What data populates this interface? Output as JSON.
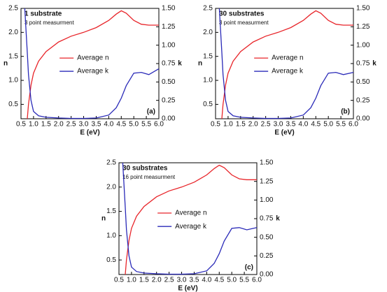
{
  "chart_data": [
    {
      "type": "line",
      "title": "1 substrate",
      "subtitle": "3 point measurment",
      "panel_label": "(a)",
      "xlabel": "E (eV)",
      "ylabel": "n",
      "y2label": "k",
      "x": [
        0.65,
        0.75,
        0.8,
        0.9,
        1.0,
        1.2,
        1.5,
        2.0,
        2.5,
        3.0,
        3.5,
        4.0,
        4.3,
        4.5,
        4.7,
        5.0,
        5.3,
        5.6,
        6.0
      ],
      "series": [
        {
          "name": "Average n",
          "color": "#e8252a",
          "values": [
            null,
            0.2,
            0.5,
            0.9,
            1.15,
            1.4,
            1.6,
            1.8,
            1.92,
            2.0,
            2.1,
            2.25,
            2.38,
            2.45,
            2.4,
            2.25,
            2.17,
            2.15,
            2.15
          ]
        },
        {
          "name": "Average k",
          "color": "#2a2ab8",
          "axis": "y2",
          "values": [
            1.5,
            0.9,
            0.6,
            0.25,
            0.1,
            0.04,
            0.02,
            0.01,
            0.005,
            0.005,
            0.01,
            0.05,
            0.15,
            0.28,
            0.45,
            0.62,
            0.63,
            0.6,
            0.68
          ]
        }
      ],
      "xlim": [
        0.5,
        6.0
      ],
      "xticks": [
        0.5,
        {
          "value": 1.0,
          "label": "1.0"
        },
        1.5,
        {
          "value": 2.0,
          "label": "2.0"
        },
        2.5,
        {
          "value": 3.0,
          "label": "3.0"
        },
        3.5,
        {
          "value": 4.0,
          "label": "4.0"
        },
        4.5,
        {
          "value": 5.0,
          "label": "5.0"
        },
        5.5,
        {
          "value": 6.0,
          "label": "6.0"
        }
      ],
      "ylim": [
        0.2,
        2.5
      ],
      "yticks": [
        0.5,
        {
          "value": 1.0,
          "label": "1.0"
        },
        1.5,
        {
          "value": 2.0,
          "label": "2.0"
        },
        2.5
      ],
      "y2lim": [
        0.0,
        1.5
      ],
      "y2ticks": [
        {
          "value": 0.0,
          "label": "0.00"
        },
        {
          "value": 0.25,
          "label": "0.25"
        },
        {
          "value": 0.5,
          "label": "0.50"
        },
        {
          "value": 0.75,
          "label": "0.75"
        },
        {
          "value": 1.0,
          "label": "1.00"
        },
        {
          "value": 1.25,
          "label": "1.25"
        },
        {
          "value": 1.5,
          "label": "1.50"
        }
      ]
    },
    {
      "type": "line",
      "title": "30 substrates",
      "subtitle": "3 point measurment",
      "panel_label": "(b)",
      "xlabel": "E (eV)",
      "ylabel": "n",
      "y2label": "k",
      "x": [
        0.65,
        0.75,
        0.8,
        0.9,
        1.0,
        1.2,
        1.5,
        2.0,
        2.5,
        3.0,
        3.5,
        4.0,
        4.3,
        4.5,
        4.7,
        5.0,
        5.3,
        5.6,
        6.0
      ],
      "series": [
        {
          "name": "Average n",
          "color": "#e8252a",
          "values": [
            null,
            0.2,
            0.5,
            0.9,
            1.15,
            1.4,
            1.6,
            1.8,
            1.92,
            2.0,
            2.1,
            2.25,
            2.38,
            2.45,
            2.4,
            2.25,
            2.17,
            2.15,
            2.15
          ]
        },
        {
          "name": "Average k",
          "color": "#2a2ab8",
          "axis": "y2",
          "values": [
            1.5,
            0.9,
            0.6,
            0.25,
            0.1,
            0.04,
            0.02,
            0.01,
            0.005,
            0.005,
            0.01,
            0.05,
            0.15,
            0.28,
            0.45,
            0.62,
            0.63,
            0.6,
            0.63
          ]
        }
      ],
      "xlim": [
        0.5,
        6.0
      ],
      "xticks": [
        0.5,
        {
          "value": 1.0,
          "label": "1.0"
        },
        1.5,
        {
          "value": 2.0,
          "label": "2.0"
        },
        2.5,
        {
          "value": 3.0,
          "label": "3.0"
        },
        3.5,
        {
          "value": 4.0,
          "label": "4.0"
        },
        4.5,
        {
          "value": 5.0,
          "label": "5.0"
        },
        5.5,
        {
          "value": 6.0,
          "label": "6.0"
        }
      ],
      "ylim": [
        0.2,
        2.5
      ],
      "yticks": [
        0.5,
        {
          "value": 1.0,
          "label": "1.0"
        },
        1.5,
        {
          "value": 2.0,
          "label": "2.0"
        },
        2.5
      ],
      "y2lim": [
        0.0,
        1.5
      ],
      "y2ticks": [
        {
          "value": 0.0,
          "label": "0.00"
        },
        {
          "value": 0.25,
          "label": "0.25"
        },
        {
          "value": 0.5,
          "label": "0.50"
        },
        {
          "value": 0.75,
          "label": "0.75"
        },
        {
          "value": 1.0,
          "label": "1.00"
        },
        {
          "value": 1.25,
          "label": "1.25"
        },
        {
          "value": 1.5,
          "label": "1.50"
        }
      ]
    },
    {
      "type": "line",
      "title": "30 substrates",
      "subtitle": "16 point measurment",
      "panel_label": "(c)",
      "xlabel": "E (eV)",
      "ylabel": "n",
      "y2label": "k",
      "x": [
        0.65,
        0.75,
        0.8,
        0.9,
        1.0,
        1.2,
        1.5,
        2.0,
        2.5,
        3.0,
        3.5,
        4.0,
        4.3,
        4.5,
        4.7,
        5.0,
        5.3,
        5.6,
        6.0
      ],
      "series": [
        {
          "name": "Average n",
          "color": "#e8252a",
          "values": [
            null,
            0.2,
            0.5,
            0.9,
            1.15,
            1.4,
            1.6,
            1.8,
            1.92,
            2.0,
            2.1,
            2.25,
            2.38,
            2.45,
            2.4,
            2.25,
            2.17,
            2.15,
            2.15
          ]
        },
        {
          "name": "Average k",
          "color": "#2a2ab8",
          "axis": "y2",
          "values": [
            1.5,
            0.9,
            0.6,
            0.25,
            0.1,
            0.04,
            0.02,
            0.01,
            0.005,
            0.005,
            0.01,
            0.05,
            0.15,
            0.28,
            0.45,
            0.62,
            0.63,
            0.6,
            0.63
          ]
        }
      ],
      "xlim": [
        0.5,
        6.0
      ],
      "xticks": [
        0.5,
        {
          "value": 1.0,
          "label": "1.0"
        },
        1.5,
        {
          "value": 2.0,
          "label": "2.0"
        },
        2.5,
        {
          "value": 3.0,
          "label": "3.0"
        },
        3.5,
        {
          "value": 4.0,
          "label": "4.0"
        },
        4.5,
        {
          "value": 5.0,
          "label": "5.0"
        },
        5.5,
        {
          "value": 6.0,
          "label": "6.0"
        }
      ],
      "ylim": [
        0.2,
        2.5
      ],
      "yticks": [
        0.5,
        {
          "value": 1.0,
          "label": "1.0"
        },
        1.5,
        {
          "value": 2.0,
          "label": "2.0"
        },
        2.5
      ],
      "y2lim": [
        0.0,
        1.5
      ],
      "y2ticks": [
        {
          "value": 0.0,
          "label": "0.00"
        },
        {
          "value": 0.25,
          "label": "0.25"
        },
        {
          "value": 0.5,
          "label": "0.50"
        },
        {
          "value": 0.75,
          "label": "0.75"
        },
        {
          "value": 1.0,
          "label": "1.00"
        },
        {
          "value": 1.25,
          "label": "1.25"
        },
        {
          "value": 1.5,
          "label": "1.50"
        }
      ]
    }
  ]
}
